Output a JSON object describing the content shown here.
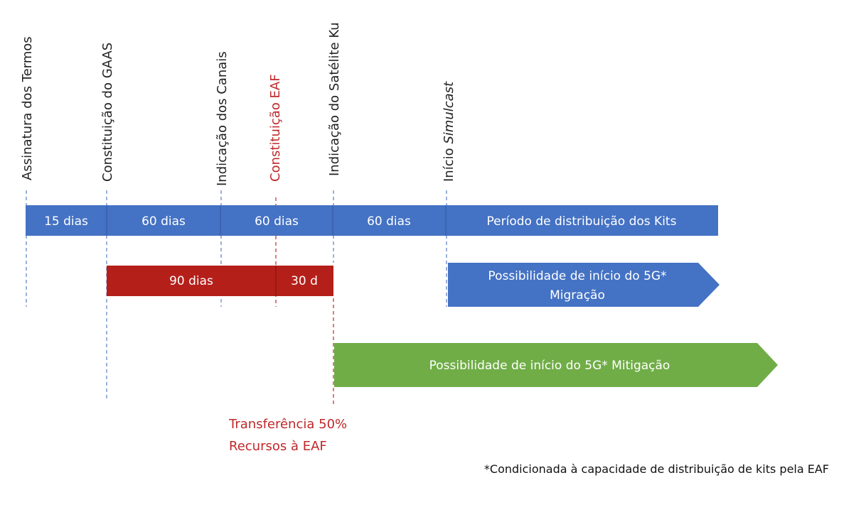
{
  "milestones": {
    "assinatura": "Assinatura dos Termos",
    "gaas": "Constituição do GAAS",
    "canais": "Indicação dos Canais",
    "eaf": "Constituição EAF",
    "satelite": "Indicação do Satélite Ku",
    "simulcast_prefix": "Início ",
    "simulcast_em": "Simulcast"
  },
  "timeline_bar": {
    "seg1": "15 dias",
    "seg2": "60 dias",
    "seg3": "60 dias",
    "seg4": "60 dias",
    "seg5": "Período de distribuição dos Kits"
  },
  "red_bar": {
    "seg1": "90 dias",
    "seg2": "30 d"
  },
  "arrows": {
    "migracao_line1": "Possibilidade de início do 5G*",
    "migracao_line2": "Migração",
    "mitigacao": "Possibilidade de início do 5G* Mitigação"
  },
  "transfer_note": {
    "line1": "Transferência 50%",
    "line2": "Recursos à EAF"
  },
  "footnote": "*Condicionada à capacidade de distribuição de kits pela EAF",
  "colors": {
    "blue": "#4472C4",
    "red": "#B51F1A",
    "green": "#70AD47",
    "red_text": "#C0282A",
    "guide_blue": "#5B7FC7",
    "guide_red": "#C0282A"
  }
}
